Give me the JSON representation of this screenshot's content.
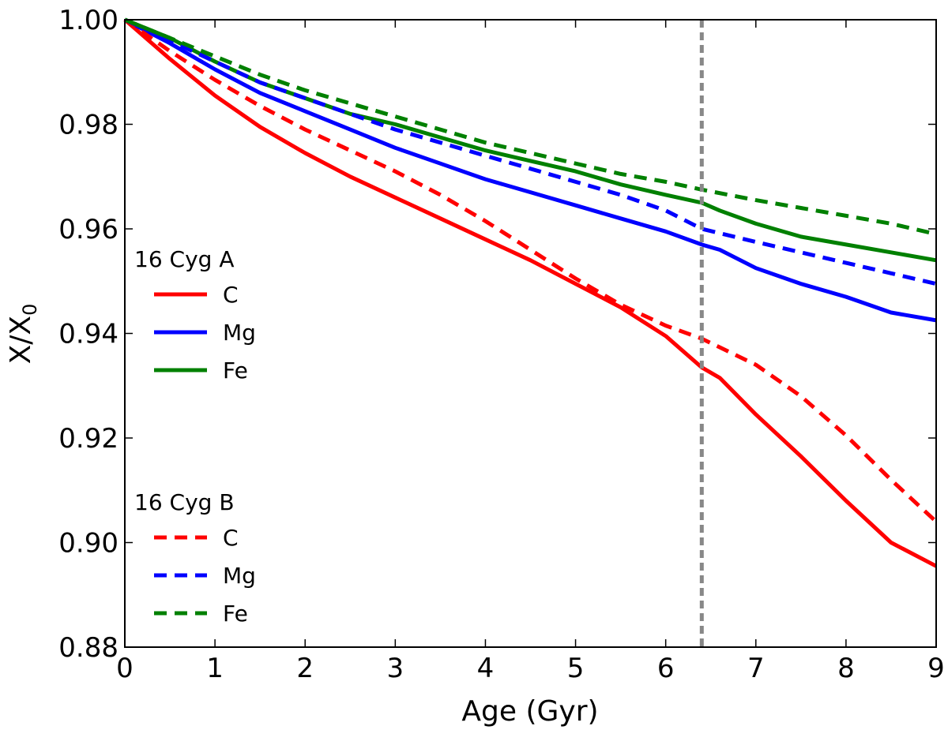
{
  "chart_data": {
    "type": "line",
    "title": "",
    "xlabel": "Age (Gyr)",
    "ylabel": "X/X",
    "ylabel_subscript": "0",
    "xlim": [
      0,
      9
    ],
    "ylim": [
      0.88,
      1.0
    ],
    "xticks": [
      0,
      1,
      2,
      3,
      4,
      5,
      6,
      7,
      8,
      9
    ],
    "xtick_labels": [
      "0",
      "1",
      "2",
      "3",
      "4",
      "5",
      "6",
      "7",
      "8",
      "9"
    ],
    "yticks": [
      0.88,
      0.9,
      0.92,
      0.94,
      0.96,
      0.98,
      1.0
    ],
    "ytick_labels": [
      "0.88",
      "0.90",
      "0.92",
      "0.94",
      "0.96",
      "0.98",
      "1.00"
    ],
    "grid": false,
    "vline": {
      "x": 6.4,
      "color": "#888888",
      "style": "dashed"
    },
    "legend_placement": "left",
    "legend_groups": [
      {
        "title": "16 Cyg A",
        "style": "solid",
        "entries": [
          {
            "label": "C",
            "color": "#ff0000"
          },
          {
            "label": "Mg",
            "color": "#0000ff"
          },
          {
            "label": "Fe",
            "color": "#008000"
          }
        ]
      },
      {
        "title": "16 Cyg B",
        "style": "dashed",
        "entries": [
          {
            "label": "C",
            "color": "#ff0000"
          },
          {
            "label": "Mg",
            "color": "#0000ff"
          },
          {
            "label": "Fe",
            "color": "#008000"
          }
        ]
      }
    ],
    "series": [
      {
        "name": "16 Cyg A C",
        "element": "C",
        "star": "16 Cyg A",
        "color": "#ff0000",
        "style": "solid",
        "x": [
          0,
          0.5,
          1,
          1.5,
          2,
          2.5,
          3,
          3.5,
          4,
          4.5,
          5,
          5.5,
          6,
          6.4,
          6.6,
          7,
          7.5,
          8,
          8.5,
          9
        ],
        "y": [
          1.0,
          0.9925,
          0.9855,
          0.9795,
          0.9745,
          0.97,
          0.966,
          0.962,
          0.958,
          0.954,
          0.9495,
          0.945,
          0.9395,
          0.9335,
          0.9315,
          0.9245,
          0.9165,
          0.908,
          0.9,
          0.8955
        ]
      },
      {
        "name": "16 Cyg A Mg",
        "element": "Mg",
        "star": "16 Cyg A",
        "color": "#0000ff",
        "style": "solid",
        "x": [
          0,
          0.5,
          1,
          1.5,
          2,
          2.5,
          3,
          3.5,
          4,
          4.5,
          5,
          5.5,
          6,
          6.4,
          6.6,
          7,
          7.5,
          8,
          8.5,
          9
        ],
        "y": [
          1.0,
          0.9955,
          0.9905,
          0.986,
          0.9825,
          0.979,
          0.9755,
          0.9725,
          0.9695,
          0.967,
          0.9645,
          0.962,
          0.9595,
          0.957,
          0.956,
          0.9525,
          0.9495,
          0.947,
          0.944,
          0.9425
        ]
      },
      {
        "name": "16 Cyg A Fe",
        "element": "Fe",
        "star": "16 Cyg A",
        "color": "#008000",
        "style": "solid",
        "x": [
          0,
          0.5,
          1,
          1.5,
          2,
          2.5,
          3,
          3.5,
          4,
          4.5,
          5,
          5.5,
          6,
          6.4,
          6.6,
          7,
          7.5,
          8,
          8.5,
          9
        ],
        "y": [
          1.0,
          0.9965,
          0.992,
          0.988,
          0.985,
          0.982,
          0.98,
          0.9775,
          0.975,
          0.973,
          0.971,
          0.9685,
          0.9665,
          0.965,
          0.9635,
          0.961,
          0.9585,
          0.957,
          0.9555,
          0.954
        ]
      },
      {
        "name": "16 Cyg B C",
        "element": "C",
        "star": "16 Cyg B",
        "color": "#ff0000",
        "style": "dashed",
        "x": [
          0,
          0.5,
          1,
          1.5,
          2,
          2.5,
          3,
          3.5,
          4,
          4.5,
          5,
          5.5,
          6,
          6.4,
          7,
          7.5,
          8,
          8.5,
          9
        ],
        "y": [
          1.0,
          0.994,
          0.9885,
          0.9835,
          0.979,
          0.975,
          0.971,
          0.9665,
          0.9615,
          0.956,
          0.9505,
          0.9455,
          0.9415,
          0.939,
          0.934,
          0.928,
          0.9205,
          0.912,
          0.904
        ]
      },
      {
        "name": "16 Cyg B Mg",
        "element": "Mg",
        "star": "16 Cyg B",
        "color": "#0000ff",
        "style": "dashed",
        "x": [
          0,
          0.5,
          1,
          1.5,
          2,
          2.5,
          3,
          3.5,
          4,
          4.5,
          5,
          5.5,
          6,
          6.4,
          7,
          7.5,
          8,
          8.5,
          9
        ],
        "y": [
          1.0,
          0.996,
          0.992,
          0.988,
          0.985,
          0.982,
          0.979,
          0.9765,
          0.974,
          0.9715,
          0.969,
          0.9665,
          0.9635,
          0.96,
          0.9575,
          0.9555,
          0.9535,
          0.9515,
          0.9495
        ]
      },
      {
        "name": "16 Cyg B Fe",
        "element": "Fe",
        "star": "16 Cyg B",
        "color": "#008000",
        "style": "dashed",
        "x": [
          0,
          0.5,
          1,
          1.5,
          2,
          2.5,
          3,
          3.5,
          4,
          4.5,
          5,
          5.5,
          6,
          6.4,
          7,
          7.5,
          8,
          8.5,
          9
        ],
        "y": [
          1.0,
          0.9965,
          0.993,
          0.9895,
          0.9865,
          0.984,
          0.9815,
          0.979,
          0.9765,
          0.9745,
          0.9725,
          0.9705,
          0.969,
          0.9675,
          0.9655,
          0.964,
          0.9625,
          0.961,
          0.959
        ]
      }
    ]
  }
}
